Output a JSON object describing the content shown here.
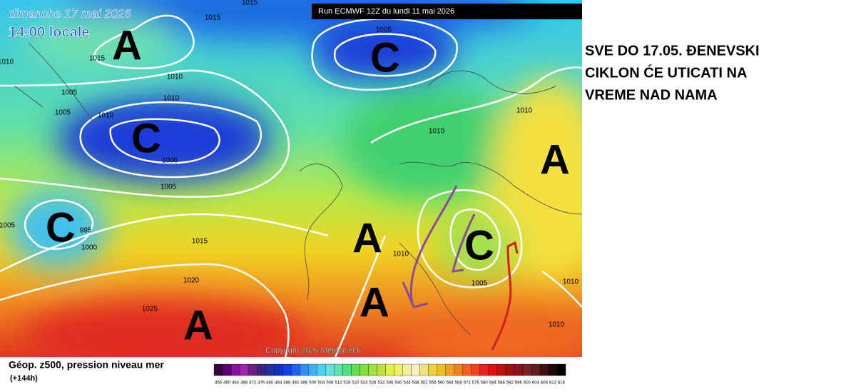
{
  "map": {
    "date": "dimanche 17 mai 2026",
    "time": "14:00 locale",
    "run": "Run ECMWF 12Z du lundi 11 mai 2026",
    "copyright": "Copyright 2026 Meteociel.fr",
    "systems": [
      "A",
      "C",
      "C",
      "A",
      "C",
      "A",
      "C",
      "A",
      "A"
    ],
    "isobar_labels": [
      "1015",
      "1015",
      "1015",
      "1010",
      "1005",
      "1005",
      "1010",
      "1010",
      "1010",
      "1005",
      "1010",
      "1010",
      "1000",
      "1005",
      "995",
      "1000",
      "1005",
      "1015",
      "1010",
      "1020",
      "1025",
      "1005",
      "1010",
      "1010"
    ]
  },
  "annotation": [
    "SVE DO 17.05. ĐENEVSKI",
    "CIKLON ĆE UTICATI NA",
    "VREME NAD NAMA"
  ],
  "legend": {
    "title": "Géop. z500, pression niveau mer",
    "lead": "(+144h)",
    "scale": [
      456,
      460,
      464,
      468,
      472,
      476,
      480,
      484,
      488,
      492,
      496,
      500,
      504,
      508,
      512,
      516,
      520,
      524,
      528,
      532,
      536,
      540,
      544,
      548,
      552,
      556,
      560,
      564,
      568,
      572,
      576,
      580,
      584,
      588,
      592,
      596,
      600,
      604,
      608,
      612,
      616
    ]
  }
}
